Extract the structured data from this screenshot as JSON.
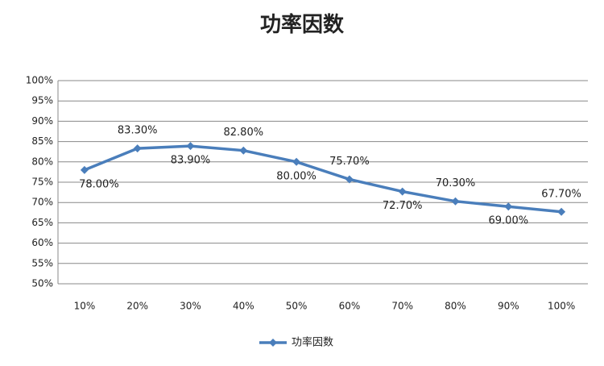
{
  "chart_data": {
    "type": "line",
    "title": "功率因数",
    "categories": [
      "10%",
      "20%",
      "30%",
      "40%",
      "50%",
      "60%",
      "70%",
      "80%",
      "90%",
      "100%"
    ],
    "series": [
      {
        "name": "功率因数",
        "color": "#4a7ebb",
        "values": [
          78,
          83.3,
          83.9,
          82.8,
          80,
          75.7,
          72.7,
          70.3,
          69,
          67.7
        ],
        "value_labels": [
          "78.00%",
          "83.30%",
          "83.90%",
          "82.80%",
          "80.00%",
          "75.70%",
          "72.70%",
          "70.30%",
          "69.00%",
          "67.70%"
        ]
      }
    ],
    "ylim": [
      50,
      100
    ],
    "yticks": [
      {
        "value": 50,
        "label": "50%"
      },
      {
        "value": 55,
        "label": "55%"
      },
      {
        "value": 60,
        "label": "60%"
      },
      {
        "value": 65,
        "label": "65%"
      },
      {
        "value": 70,
        "label": "70%"
      },
      {
        "value": 75,
        "label": "75%"
      },
      {
        "value": 80,
        "label": "80%"
      },
      {
        "value": 85,
        "label": "85%"
      },
      {
        "value": 90,
        "label": "90%"
      },
      {
        "value": 95,
        "label": "95%"
      },
      {
        "value": 100,
        "label": "100%"
      }
    ],
    "grid": true,
    "legend": "bottom"
  }
}
